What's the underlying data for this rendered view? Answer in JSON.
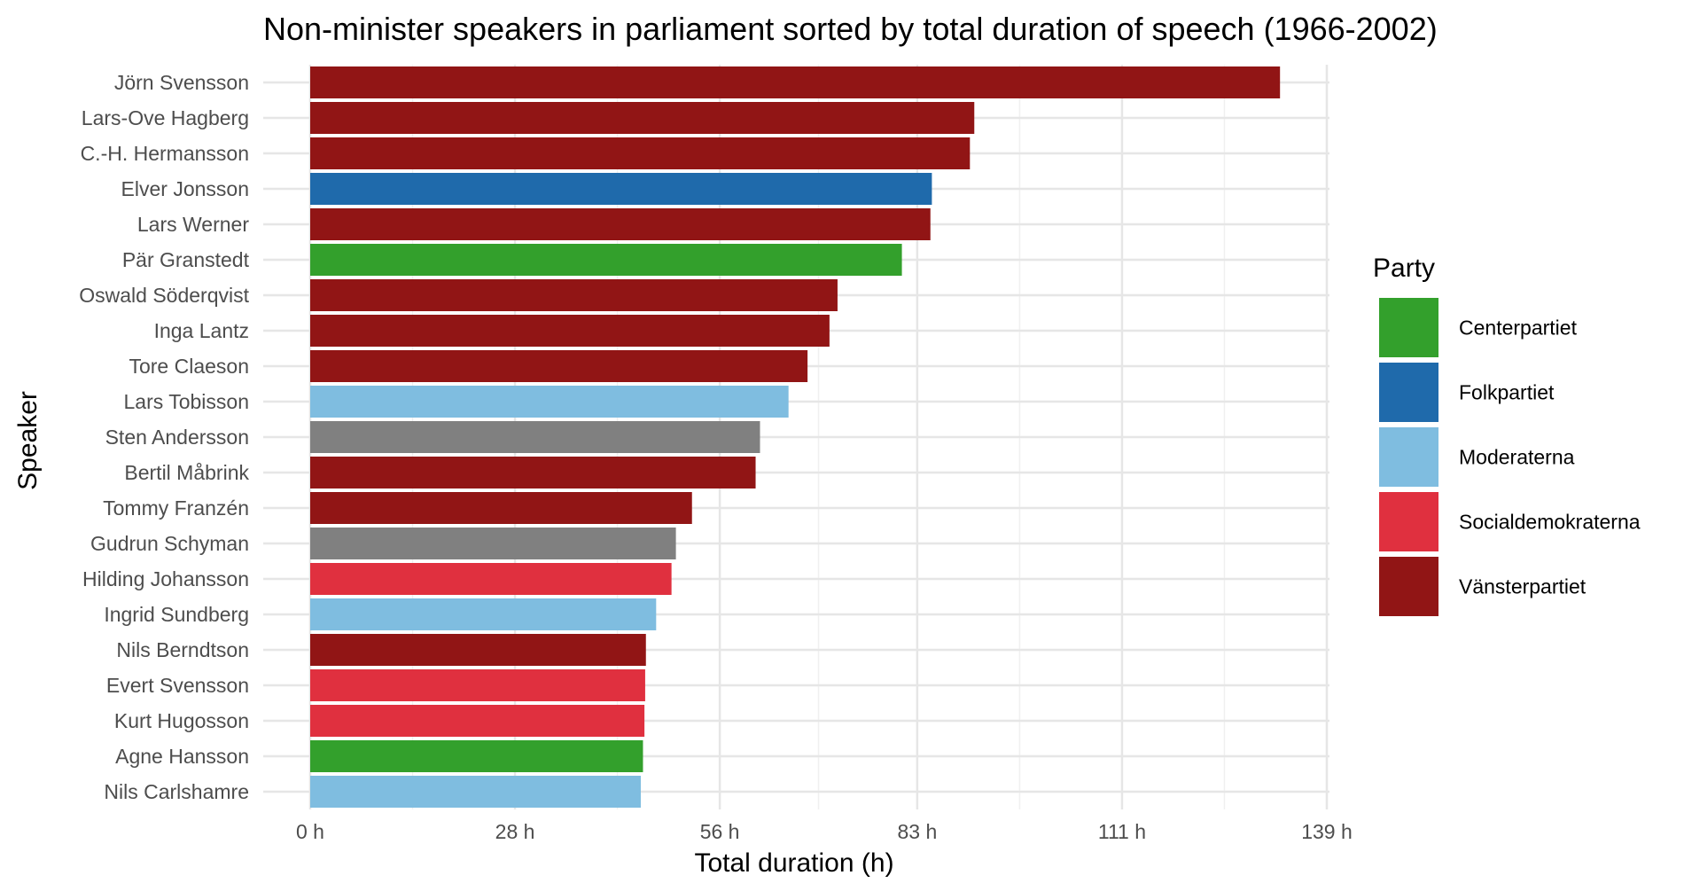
{
  "chart_data": {
    "type": "bar",
    "orientation": "horizontal",
    "title": "Non-minister speakers in parliament sorted by total duration of speech (1966-2002)",
    "xlabel": "Total duration (h)",
    "ylabel": "Speaker",
    "xlim": [
      0,
      139
    ],
    "x_ticks": [
      0,
      28,
      56,
      83,
      111,
      139
    ],
    "x_tick_labels": [
      "0 h",
      "28 h",
      "56 h",
      "83 h",
      "111 h",
      "139 h"
    ],
    "grid": true,
    "legend_title": "Party",
    "legend_position": "right",
    "legend": [
      {
        "name": "Centerpartiet",
        "color": "#33a02c"
      },
      {
        "name": "Folkpartiet",
        "color": "#1f6aab"
      },
      {
        "name": "Moderaterna",
        "color": "#7fbde0"
      },
      {
        "name": "Socialdemokraterna",
        "color": "#e0303f"
      },
      {
        "name": "Vänsterpartiet",
        "color": "#911515"
      }
    ],
    "unlisted_party_color": "#808080",
    "categories": [
      "Jörn Svensson",
      "Lars-Ove Hagberg",
      "C.-H. Hermansson",
      "Elver Jonsson",
      "Lars Werner",
      "Pär Granstedt",
      "Oswald Söderqvist",
      "Inga Lantz",
      "Tore Claeson",
      "Lars Tobisson",
      "Sten Andersson",
      "Bertil Måbrink",
      "Tommy Franzén",
      "Gudrun Schyman",
      "Hilding Johansson",
      "Ingrid Sundberg",
      "Nils Berndtson",
      "Evert Svensson",
      "Kurt Hugosson",
      "Agne Hansson",
      "Nils Carlshamre"
    ],
    "values": [
      132.6,
      90.8,
      90.2,
      85.0,
      84.8,
      80.9,
      72.1,
      71.0,
      68.0,
      65.4,
      61.5,
      60.9,
      52.2,
      50.0,
      49.4,
      47.3,
      45.9,
      45.8,
      45.7,
      45.5,
      45.2
    ],
    "party": [
      "Vänsterpartiet",
      "Vänsterpartiet",
      "Vänsterpartiet",
      "Folkpartiet",
      "Vänsterpartiet",
      "Centerpartiet",
      "Vänsterpartiet",
      "Vänsterpartiet",
      "Vänsterpartiet",
      "Moderaterna",
      "",
      "Vänsterpartiet",
      "Vänsterpartiet",
      "",
      "Socialdemokraterna",
      "Moderaterna",
      "Vänsterpartiet",
      "Socialdemokraterna",
      "Socialdemokraterna",
      "Centerpartiet",
      "Moderaterna"
    ]
  }
}
